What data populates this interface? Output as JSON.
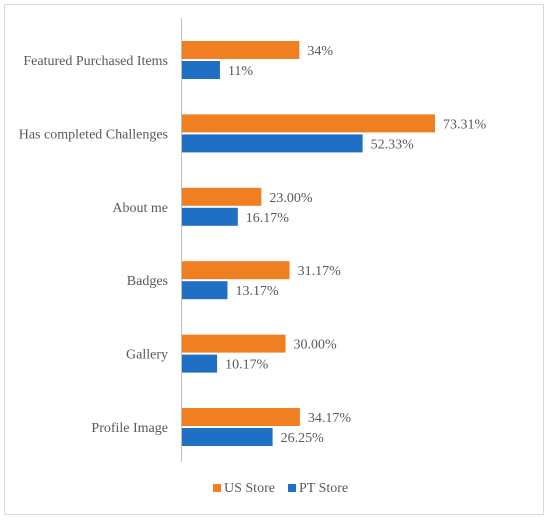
{
  "chart_data": {
    "type": "bar",
    "orientation": "horizontal",
    "categories": [
      "Featured Purchased Items",
      "Has completed Challenges",
      "About me",
      "Badges",
      "Gallery",
      "Profile Image"
    ],
    "series": [
      {
        "name": "US Store",
        "color": "#f07f22",
        "values": [
          34,
          73.31,
          23.0,
          31.17,
          30.0,
          34.17
        ],
        "labels": [
          "34%",
          "73.31%",
          "23.00%",
          "31.17%",
          "30.00%",
          "34.17%"
        ]
      },
      {
        "name": "PT Store",
        "color": "#1f6fc5",
        "values": [
          11,
          52.33,
          16.17,
          13.17,
          10.17,
          26.25
        ],
        "labels": [
          "11%",
          "52.33%",
          "16.17%",
          "13.17%",
          "10.17%",
          "26.25%"
        ]
      }
    ],
    "xlim": [
      0,
      100
    ],
    "grid": false,
    "legend_position": "bottom",
    "title": "",
    "xlabel": "",
    "ylabel": ""
  }
}
